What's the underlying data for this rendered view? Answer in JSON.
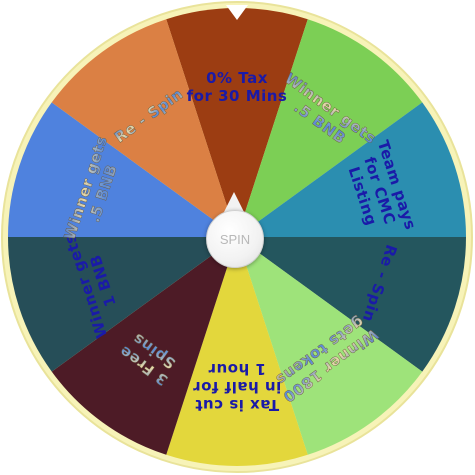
{
  "wheel": {
    "rim_color": "#f7f3b8",
    "segments": [
      {
        "label_lines": [
          "0% Tax",
          "for 30 Mins"
        ],
        "color": "#9c3d12",
        "text_color": "#1a1aa8",
        "style": "plain"
      },
      {
        "label_lines": [
          "Winner gets",
          ".5 BNB"
        ],
        "color": "#7ccf55",
        "text_color": "#4a8fd8",
        "style": "gradient"
      },
      {
        "label_lines": [
          "Team pays",
          "for CMC",
          "Listing"
        ],
        "color": "#2b8eb0",
        "text_color": "#1a1aa8",
        "style": "plain"
      },
      {
        "label_lines": [
          "Re - Spin"
        ],
        "color": "#24565e",
        "text_color": "#1a1aa8",
        "style": "plain"
      },
      {
        "label_lines": [
          "Winner 1800",
          "gets tokens"
        ],
        "color": "#9ee37a",
        "text_color": "#4a8fd8",
        "style": "gradient"
      },
      {
        "label_lines": [
          "Tax is cut",
          "in half for",
          "1 hour"
        ],
        "color": "#e3d73c",
        "text_color": "#1a1aa8",
        "style": "plain"
      },
      {
        "label_lines": [
          "3 Free",
          "Spins"
        ],
        "color": "#4d1b26",
        "text_color": "#4a8fd8",
        "style": "gradient"
      },
      {
        "label_lines": [
          "Winner gets",
          "1 BNB"
        ],
        "color": "#264e58",
        "text_color": "#1a1aa8",
        "style": "plain"
      },
      {
        "label_lines": [
          "Winner gets",
          ".5 BNB"
        ],
        "color": "#4f82de",
        "text_color": "#4a8fd8",
        "style": "gradient"
      },
      {
        "label_lines": [
          "Re - Spin"
        ],
        "color": "#db8044",
        "text_color": "#4a8fd8",
        "style": "gradient"
      }
    ]
  },
  "spin_button": {
    "label": "SPIN"
  }
}
